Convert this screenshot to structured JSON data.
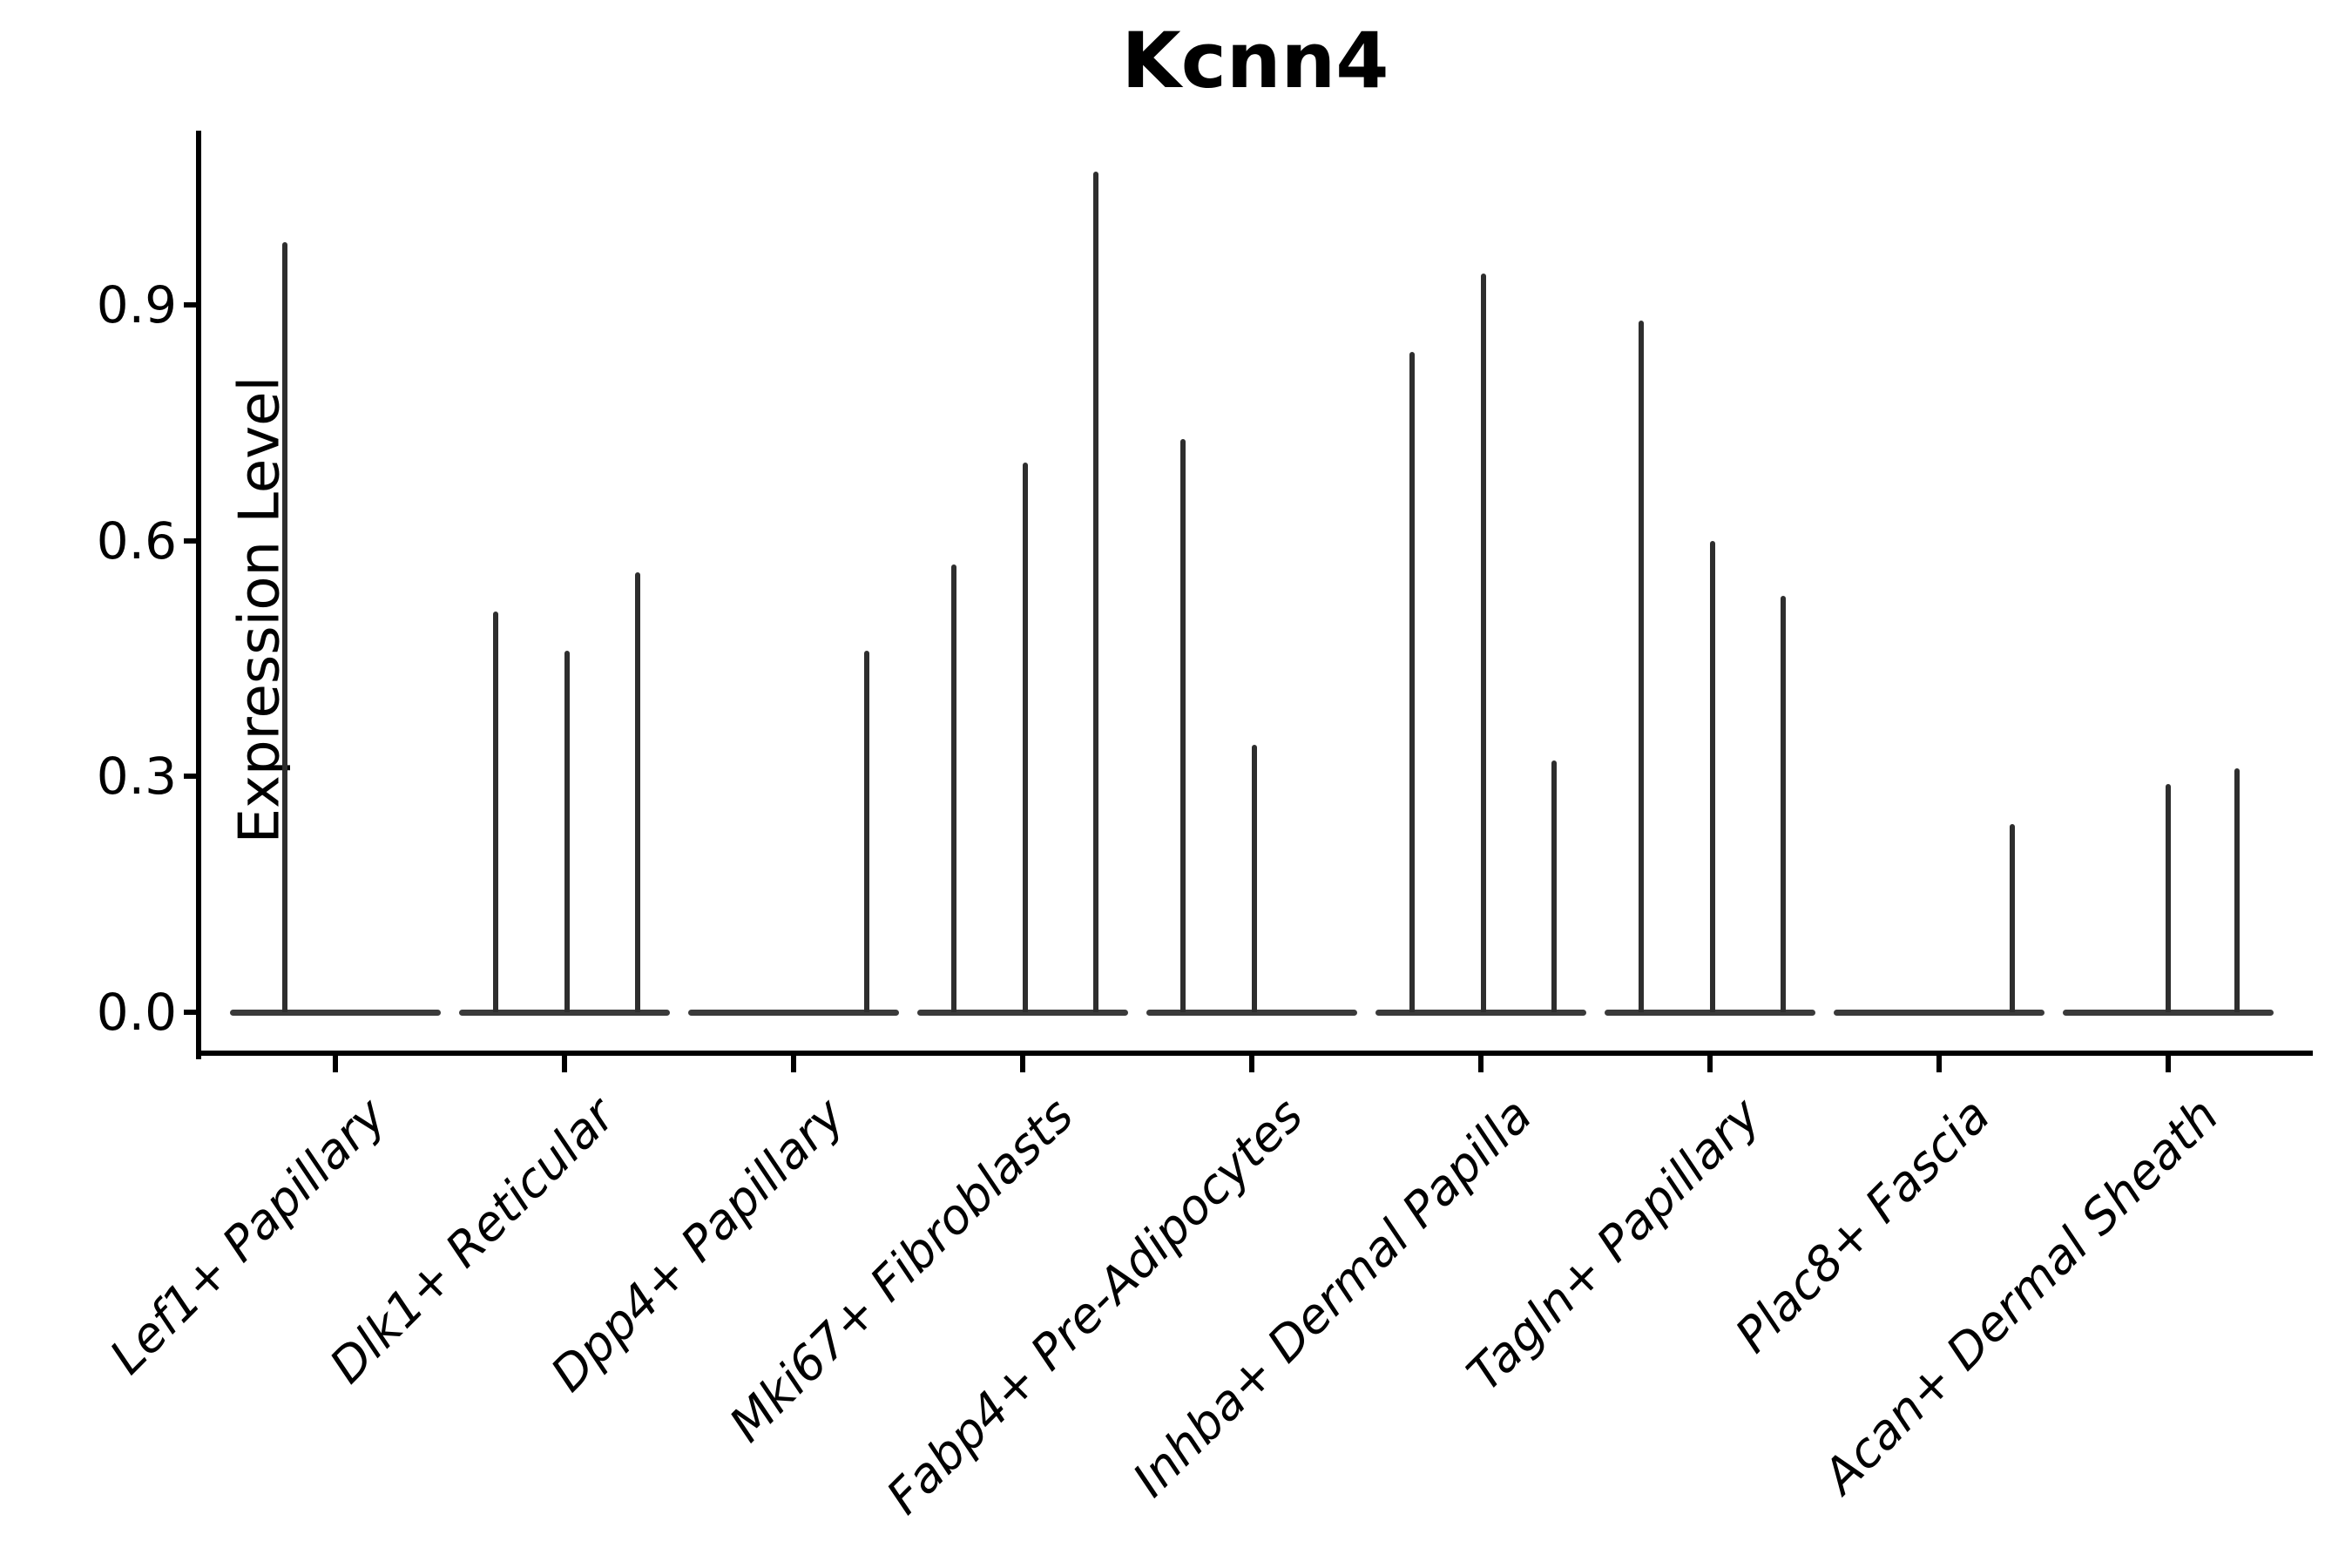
{
  "figure": {
    "title": "Kcnn4",
    "ylabel": "Expression Level"
  },
  "chart_data": {
    "type": "violin",
    "title": "Kcnn4",
    "xlabel": "",
    "ylabel": "Expression Level",
    "ylim": [
      0,
      1.12
    ],
    "yticks": [
      0,
      0.3,
      0.6,
      0.9
    ],
    "ytick_labels": [
      "0.0",
      "0.3",
      "0.6",
      "0.9"
    ],
    "grid": false,
    "legend": "none",
    "description": "Single-cell violin plot of Kcnn4 expression; each cell-type category shows a wide flat bulk of zero-expression cells along the baseline plus very thin spike violins (dodged sub-groups) whose tips mark the maximum expression level.",
    "categories": [
      "Lef1+ Papillary",
      "Dlk1+ Reticular",
      "Dpp4+ Papillary",
      "Mki67+ Fibroblasts",
      "Fabp4+ Pre-Adipocytes",
      "Inhba+ Dermal Papilla",
      "Tagln+ Papillary",
      "Plac8+ Fascia",
      "Acan+ Dermal Sheath"
    ],
    "violins": [
      {
        "category": "Lef1+ Papillary",
        "zero_bulk": true,
        "spikes": [
          {
            "offset_frac": -0.22,
            "max": 0.98
          }
        ]
      },
      {
        "category": "Dlk1+ Reticular",
        "zero_bulk": true,
        "spikes": [
          {
            "offset_frac": -0.3,
            "max": 0.51
          },
          {
            "offset_frac": 0.01,
            "max": 0.46
          },
          {
            "offset_frac": 0.32,
            "max": 0.56
          }
        ]
      },
      {
        "category": "Dpp4+ Papillary",
        "zero_bulk": true,
        "spikes": [
          {
            "offset_frac": 0.32,
            "max": 0.46
          }
        ]
      },
      {
        "category": "Mki67+ Fibroblasts",
        "zero_bulk": true,
        "spikes": [
          {
            "offset_frac": -0.3,
            "max": 0.57
          },
          {
            "offset_frac": 0.01,
            "max": 0.7
          },
          {
            "offset_frac": 0.32,
            "max": 1.07
          }
        ]
      },
      {
        "category": "Fabp4+ Pre-Adipocytes",
        "zero_bulk": true,
        "spikes": [
          {
            "offset_frac": -0.3,
            "max": 0.73
          },
          {
            "offset_frac": 0.01,
            "max": 0.34
          }
        ]
      },
      {
        "category": "Inhba+ Dermal Papilla",
        "zero_bulk": true,
        "spikes": [
          {
            "offset_frac": -0.3,
            "max": 0.84
          },
          {
            "offset_frac": 0.01,
            "max": 0.94
          },
          {
            "offset_frac": 0.32,
            "max": 0.32
          }
        ]
      },
      {
        "category": "Tagln+ Papillary",
        "zero_bulk": true,
        "spikes": [
          {
            "offset_frac": -0.3,
            "max": 0.88
          },
          {
            "offset_frac": 0.01,
            "max": 0.6
          },
          {
            "offset_frac": 0.32,
            "max": 0.53
          }
        ]
      },
      {
        "category": "Plac8+ Fascia",
        "zero_bulk": true,
        "spikes": [
          {
            "offset_frac": 0.32,
            "max": 0.24
          }
        ]
      },
      {
        "category": "Acan+ Dermal Sheath",
        "zero_bulk": true,
        "spikes": [
          {
            "offset_frac": 0.0,
            "max": 0.29
          },
          {
            "offset_frac": 0.3,
            "max": 0.31
          }
        ]
      }
    ],
    "colors": {
      "spike_line": "#2e2e2e",
      "zero_bar": "#3a3a3a",
      "axis": "#000000",
      "background": "#ffffff"
    }
  }
}
